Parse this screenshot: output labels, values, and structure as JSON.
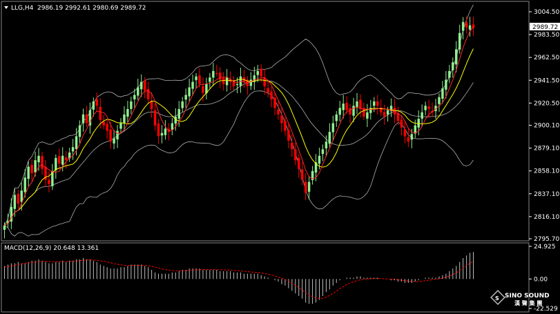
{
  "header": {
    "symbol": "LLG,H4",
    "ohlc": "2986.19 2992.61 2980.69 2989.72",
    "macd_label": "MACD(12,26,9) 20.648 13.361"
  },
  "current_price": "2989.72",
  "price_ticks": [
    "3004.50",
    "2983.50",
    "2962.50",
    "2941.50",
    "2920.50",
    "2900.10",
    "2879.10",
    "2858.10",
    "2837.10",
    "2816.10",
    "2795.70"
  ],
  "macd_ticks": [
    "24.925",
    "0.00",
    "-22.529"
  ],
  "logo": {
    "title": "SINO SOUND",
    "subtitle": "漢 聲 集 團"
  },
  "colors": {
    "background": "#000000",
    "bull_candle": "#90ee90",
    "bear_candle": "#ff0000",
    "ma_fast": "#ff2a2a",
    "ma_slow": "#ffff00",
    "bollinger": "#b0b0b0",
    "macd_hist": "#c0c0c0",
    "macd_signal": "#ff0000",
    "text": "#ffffff"
  },
  "chart_data": [
    {
      "type": "candlestick",
      "title": "LLG,H4",
      "ylim": [
        2795.7,
        3004.5
      ],
      "overlays": [
        "moving-average-fast",
        "moving-average-slow",
        "bollinger-bands"
      ],
      "close": [
        2808,
        2812,
        2825,
        2836,
        2828,
        2840,
        2852,
        2862,
        2856,
        2868,
        2872,
        2860,
        2850,
        2846,
        2858,
        2870,
        2865,
        2872,
        2868,
        2875,
        2880,
        2890,
        2900,
        2910,
        2902,
        2914,
        2922,
        2918,
        2905,
        2900,
        2895,
        2885,
        2888,
        2895,
        2902,
        2910,
        2915,
        2922,
        2928,
        2935,
        2940,
        2932,
        2924,
        2915,
        2900,
        2890,
        2893,
        2897,
        2894,
        2902,
        2908,
        2915,
        2922,
        2928,
        2935,
        2940,
        2945,
        2938,
        2930,
        2938,
        2944,
        2950,
        2948,
        2942,
        2938,
        2944,
        2940,
        2936,
        2938,
        2945,
        2940,
        2936,
        2942,
        2946,
        2950,
        2945,
        2936,
        2930,
        2924,
        2916,
        2910,
        2902,
        2895,
        2886,
        2878,
        2868,
        2860,
        2850,
        2838,
        2848,
        2858,
        2866,
        2872,
        2878,
        2885,
        2894,
        2902,
        2910,
        2916,
        2920,
        2914,
        2910,
        2918,
        2922,
        2915,
        2908,
        2912,
        2916,
        2922,
        2918,
        2912,
        2908,
        2914,
        2918,
        2910,
        2904,
        2898,
        2890,
        2885,
        2892,
        2900,
        2906,
        2912,
        2918,
        2915,
        2912,
        2918,
        2926,
        2934,
        2942,
        2950,
        2958,
        2970,
        2985,
        2995,
        2990,
        2992,
        2989.72
      ],
      "macd": {
        "ylim": [
          -22.529,
          24.925
        ],
        "histogram": [
          10,
          11,
          12,
          12,
          13,
          12,
          12,
          13,
          14,
          14,
          15,
          14,
          13,
          12,
          12,
          13,
          13,
          14,
          13,
          14,
          14,
          15,
          15,
          16,
          15,
          15,
          14,
          13,
          11,
          10,
          9,
          8,
          8,
          8,
          9,
          9,
          10,
          11,
          11,
          11,
          11,
          10,
          9,
          7,
          5,
          4,
          4,
          4,
          4,
          5,
          5,
          6,
          7,
          7,
          8,
          8,
          8,
          8,
          7,
          7,
          7,
          7,
          7,
          6,
          6,
          6,
          6,
          5,
          5,
          5,
          4,
          4,
          4,
          4,
          4,
          3,
          2,
          1,
          0,
          -1,
          -2,
          -4,
          -5,
          -7,
          -9,
          -11,
          -13,
          -15,
          -18,
          -19,
          -19,
          -18,
          -16,
          -13,
          -10,
          -8,
          -5,
          -3,
          -1,
          0,
          1,
          1,
          1,
          2,
          2,
          1,
          1,
          1,
          1,
          1,
          0,
          0,
          0,
          -1,
          -1,
          -2,
          -2,
          -3,
          -3,
          -3,
          -2,
          -1,
          0,
          1,
          1,
          1,
          1,
          2,
          3,
          4,
          6,
          8,
          10,
          13,
          16,
          18,
          20,
          20.648
        ],
        "signal": [
          9,
          9.5,
          10,
          10.5,
          11,
          11.5,
          12,
          12.3,
          12.6,
          12.9,
          13.2,
          13.4,
          13.4,
          13.3,
          13.2,
          13.2,
          13.2,
          13.3,
          13.4,
          13.5,
          13.6,
          13.8,
          14,
          14.3,
          14.5,
          14.6,
          14.5,
          14.3,
          13.9,
          13.5,
          13,
          12.4,
          11.8,
          11.2,
          10.8,
          10.5,
          10.3,
          10.3,
          10.3,
          10.4,
          10.4,
          10.3,
          10.1,
          9.7,
          9.1,
          8.4,
          7.8,
          7.2,
          6.8,
          6.5,
          6.3,
          6.2,
          6.3,
          6.4,
          6.6,
          6.8,
          7,
          7.2,
          7.2,
          7.2,
          7.2,
          7.2,
          7.2,
          7.1,
          7,
          6.9,
          6.8,
          6.6,
          6.4,
          6.2,
          6,
          5.7,
          5.4,
          5.1,
          4.9,
          4.6,
          4.2,
          3.7,
          3.1,
          2.4,
          1.6,
          0.6,
          -0.5,
          -1.8,
          -3.3,
          -4.9,
          -6.6,
          -8.5,
          -10.5,
          -12.2,
          -13.6,
          -14.5,
          -14.9,
          -14.7,
          -13.8,
          -12.6,
          -11,
          -9.3,
          -7.5,
          -5.8,
          -4.3,
          -3.1,
          -2.1,
          -1.3,
          -0.6,
          -0.2,
          0,
          0.2,
          0.3,
          0.4,
          0.3,
          0.2,
          0.1,
          -0.1,
          -0.3,
          -0.6,
          -0.9,
          -1.3,
          -1.6,
          -1.9,
          -2,
          -2,
          -1.7,
          -1.3,
          -0.9,
          -0.5,
          -0.2,
          0.2,
          0.7,
          1.4,
          2.3,
          3.4,
          4.8,
          6.4,
          8.3,
          10.2,
          12,
          13.361
        ]
      }
    }
  ]
}
